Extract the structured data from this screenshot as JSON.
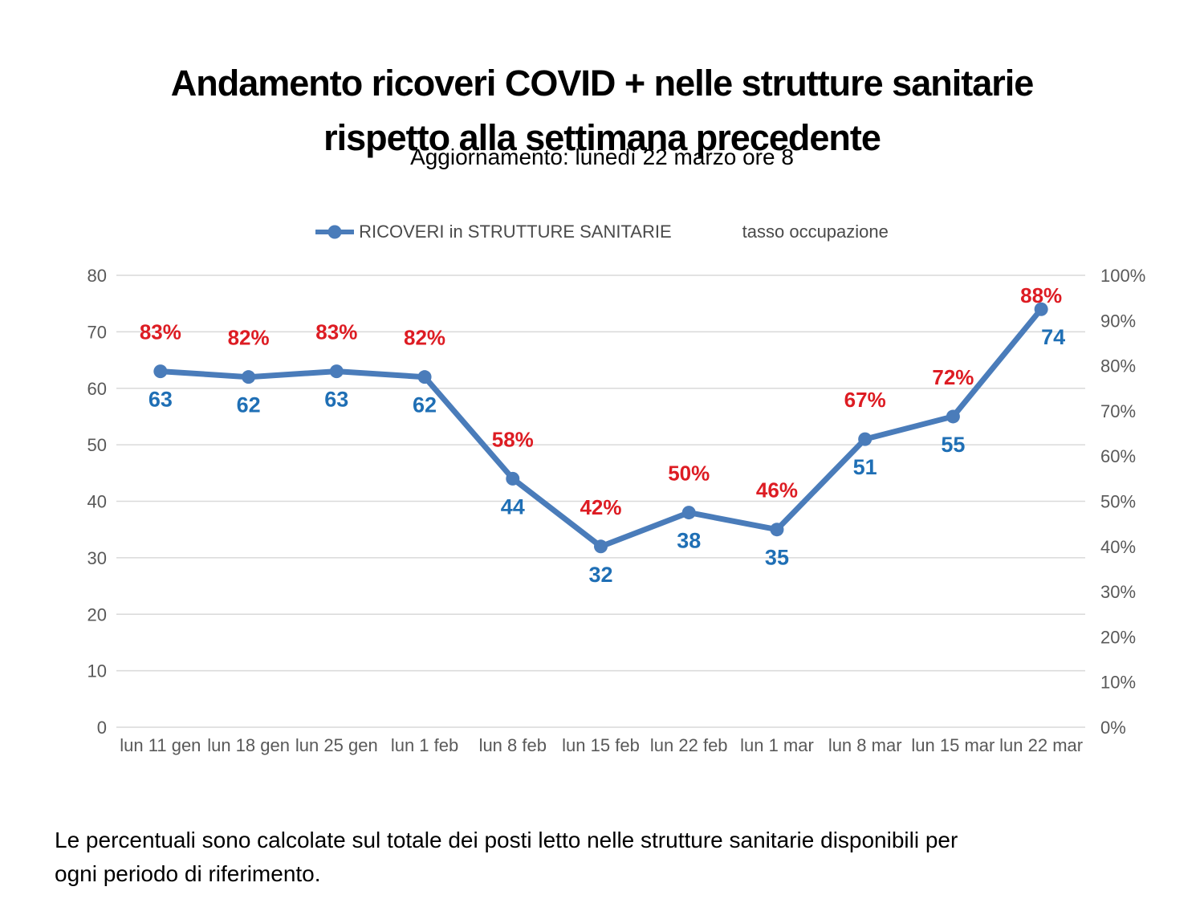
{
  "page": {
    "title_lines": [
      "Andamento ricoveri COVID + nelle strutture sanitarie",
      "rispetto alla settimana precedente"
    ],
    "subtitle": "Aggiornamento: lunedì 22 marzo ore 8",
    "footnote_lines": [
      "Le percentuali sono calcolate sul totale dei posti letto nelle strutture sanitarie disponibili per",
      "ogni periodo di riferimento."
    ]
  },
  "legend": {
    "items": [
      {
        "label": "RICOVERI in STRUTTURE SANITARIE",
        "marker": "line-dot"
      },
      {
        "label": "tasso occupazione",
        "marker": "none"
      }
    ]
  },
  "colors": {
    "line": "#4a7cba",
    "marker": "#4a7cba",
    "value_label": "#1f6fb5",
    "percent_label": "#dd1c23",
    "axis_text": "#595959",
    "gridline": "#d9d9d9",
    "title_text": "#000000",
    "legend_text": "#4a4a4a"
  },
  "chart_data": {
    "type": "line",
    "title": "Andamento ricoveri COVID + nelle strutture sanitarie rispetto alla settimana precedente",
    "subtitle": "Aggiornamento: lunedì 22 marzo ore 8",
    "categories": [
      "lun 11 gen",
      "lun 18 gen",
      "lun 25 gen",
      "lun 1 feb",
      "lun 8 feb",
      "lun 15 feb",
      "lun 22 feb",
      "lun 1 mar",
      "lun 8 mar",
      "lun 15 mar",
      "lun 22 mar"
    ],
    "series": [
      {
        "name": "RICOVERI in STRUTTURE SANITARIE",
        "type": "line",
        "axis": "left",
        "color": "#4a7cba",
        "label_color": "#1f6fb5",
        "values": [
          63,
          62,
          63,
          62,
          44,
          32,
          38,
          35,
          51,
          55,
          74
        ]
      },
      {
        "name": "tasso occupazione",
        "type": "labels-only",
        "axis": "right",
        "unit": "%",
        "label_color": "#dd1c23",
        "values": [
          83,
          82,
          83,
          82,
          58,
          42,
          50,
          46,
          67,
          72,
          88
        ]
      }
    ],
    "left_axis": {
      "min": 0,
      "max": 80,
      "step": 10,
      "ticks": [
        0,
        10,
        20,
        30,
        40,
        50,
        60,
        70,
        80
      ]
    },
    "right_axis": {
      "min": 0,
      "max": 100,
      "step": 10,
      "format": "percent",
      "ticks": [
        "0%",
        "10%",
        "20%",
        "30%",
        "40%",
        "50%",
        "60%",
        "70%",
        "80%",
        "90%",
        "100%"
      ]
    },
    "grid": true,
    "legend_position": "top-center"
  }
}
